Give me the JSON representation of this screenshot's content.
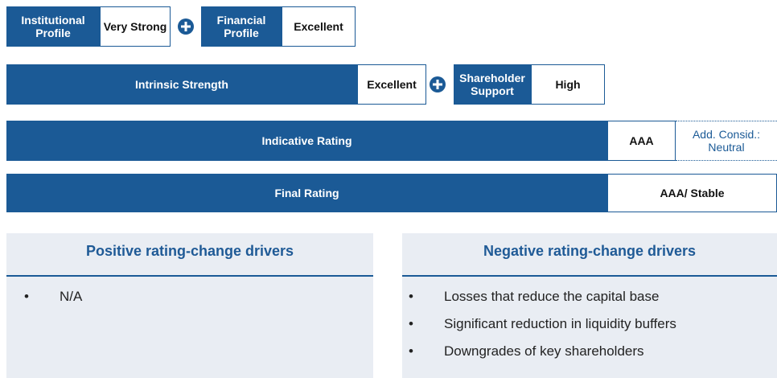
{
  "institutional_profile": {
    "label": "Institutional Profile",
    "value": "Very Strong"
  },
  "financial_profile": {
    "label": "Financial Profile",
    "value": "Excellent"
  },
  "intrinsic_strength": {
    "label": "Intrinsic Strength",
    "value": "Excellent"
  },
  "shareholder_support": {
    "label": "Shareholder Support",
    "value": "High"
  },
  "indicative_rating": {
    "label": "Indicative Rating",
    "value": "AAA",
    "additional": "Add. Consid.: Neutral"
  },
  "final_rating": {
    "label": "Final Rating",
    "value": "AAA/ Stable"
  },
  "positive_drivers": {
    "title": "Positive rating-change drivers",
    "items": [
      "N/A"
    ]
  },
  "negative_drivers": {
    "title": "Negative rating-change drivers",
    "items": [
      "Losses that reduce the capital base",
      "Significant reduction in liquidity buffers",
      "Downgrades of key shareholders"
    ]
  }
}
